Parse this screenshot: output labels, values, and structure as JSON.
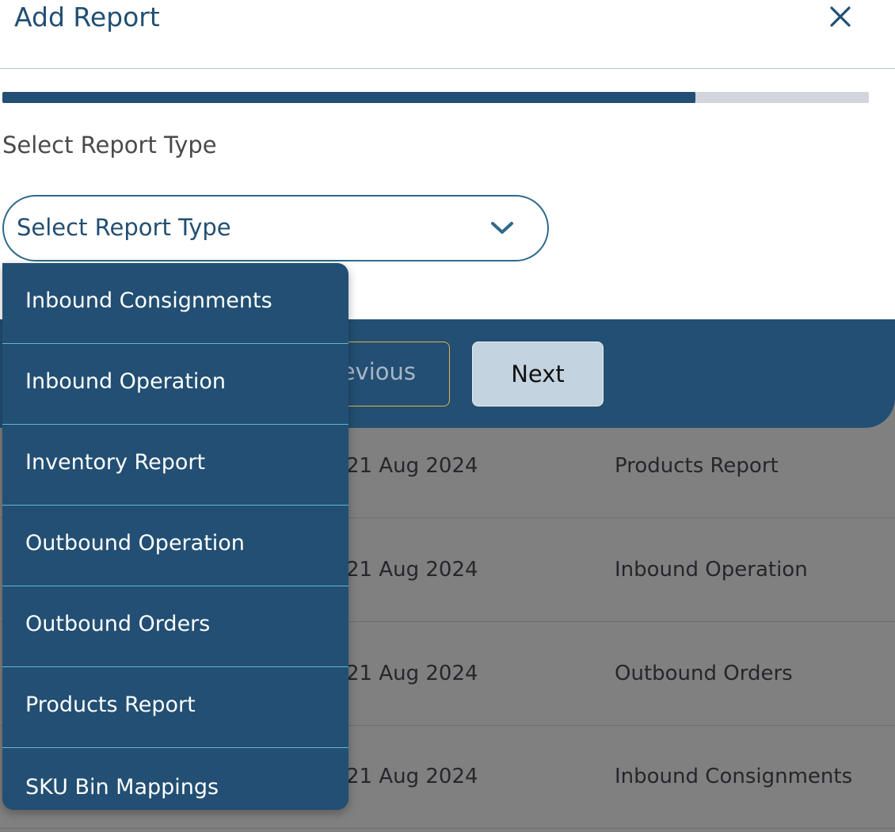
{
  "modal": {
    "title": "Add Report",
    "progress_percent": 80,
    "field_label": "Select Report Type",
    "select_placeholder": "Select Report Type",
    "options": [
      "Inbound Consignments",
      "Inbound Operation",
      "Inventory Report",
      "Outbound Operation",
      "Outbound Orders",
      "Products Report",
      "SKU Bin Mappings"
    ],
    "previous_label": "Previous",
    "next_label": "Next"
  },
  "background_table": {
    "rows": [
      {
        "date": "21 Aug 2024",
        "type": "Products Report"
      },
      {
        "date": "21 Aug 2024",
        "type": "Inbound Operation"
      },
      {
        "date": "21 Aug 2024",
        "type": "Outbound Orders"
      },
      {
        "date": "21 Aug 2024",
        "type": "Inbound Consignments"
      }
    ]
  },
  "colors": {
    "primary": "#224f73",
    "progress_track": "#d3d5dc",
    "overlay": "#808080"
  }
}
